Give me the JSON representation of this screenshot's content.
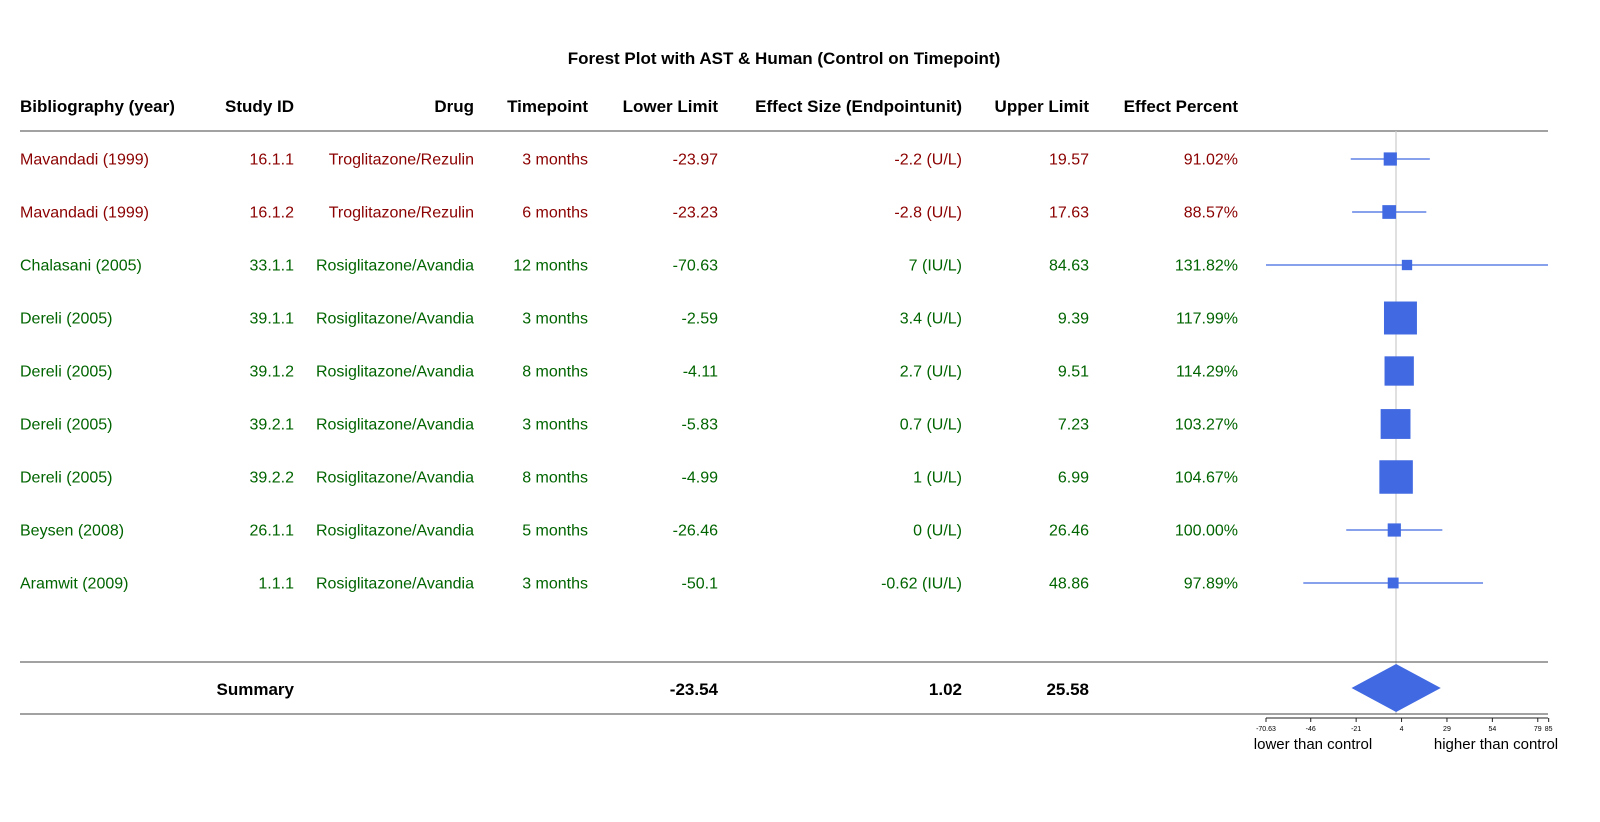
{
  "chart_data": {
    "type": "forest",
    "title": "Forest Plot with AST & Human (Control on Timepoint)",
    "columns": [
      "Bibliography (year)",
      "Study ID",
      "Drug",
      "Timepoint",
      "Lower Limit",
      "Effect Size (Endpointunit)",
      "Upper Limit",
      "Effect Percent"
    ],
    "rows": [
      {
        "bib": "Mavandadi (1999)",
        "study_id": "16.1.1",
        "drug": "Troglitazone/Rezulin",
        "timepoint": "3 months",
        "lower": -23.97,
        "effect": -2.2,
        "effect_label": "-2.2 (U/L)",
        "upper": 19.57,
        "percent": "91.02%",
        "weight": 1,
        "color": "#8b0000"
      },
      {
        "bib": "Mavandadi (1999)",
        "study_id": "16.1.2",
        "drug": "Troglitazone/Rezulin",
        "timepoint": "6 months",
        "lower": -23.23,
        "effect": -2.8,
        "effect_label": "-2.8 (U/L)",
        "upper": 17.63,
        "percent": "88.57%",
        "weight": 1.1,
        "color": "#8b0000"
      },
      {
        "bib": "Chalasani (2005)",
        "study_id": "33.1.1",
        "drug": "Rosiglitazone/Avandia",
        "timepoint": "12 months",
        "lower": -70.63,
        "effect": 7,
        "effect_label": "7 (IU/L)",
        "upper": 84.63,
        "percent": "131.82%",
        "weight": 0.45,
        "color": "#006400"
      },
      {
        "bib": "Dereli (2005)",
        "study_id": "39.1.1",
        "drug": "Rosiglitazone/Avandia",
        "timepoint": "3 months",
        "lower": -2.59,
        "effect": 3.4,
        "effect_label": "3.4 (U/L)",
        "upper": 9.39,
        "percent": "117.99%",
        "weight": 4.8,
        "color": "#006400"
      },
      {
        "bib": "Dereli (2005)",
        "study_id": "39.1.2",
        "drug": "Rosiglitazone/Avandia",
        "timepoint": "8 months",
        "lower": -4.11,
        "effect": 2.7,
        "effect_label": "2.7 (U/L)",
        "upper": 9.51,
        "percent": "114.29%",
        "weight": 4.1,
        "color": "#006400"
      },
      {
        "bib": "Dereli (2005)",
        "study_id": "39.2.1",
        "drug": "Rosiglitazone/Avandia",
        "timepoint": "3 months",
        "lower": -5.83,
        "effect": 0.7,
        "effect_label": "0.7 (U/L)",
        "upper": 7.23,
        "percent": "103.27%",
        "weight": 4.2,
        "color": "#006400"
      },
      {
        "bib": "Dereli (2005)",
        "study_id": "39.2.2",
        "drug": "Rosiglitazone/Avandia",
        "timepoint": "8 months",
        "lower": -4.99,
        "effect": 1,
        "effect_label": "1 (U/L)",
        "upper": 6.99,
        "percent": "104.67%",
        "weight": 4.9,
        "color": "#006400"
      },
      {
        "bib": "Beysen (2008)",
        "study_id": "26.1.1",
        "drug": "Rosiglitazone/Avandia",
        "timepoint": "5 months",
        "lower": -26.46,
        "effect": 0,
        "effect_label": "0 (U/L)",
        "upper": 26.46,
        "percent": "100.00%",
        "weight": 1,
        "color": "#006400"
      },
      {
        "bib": "Aramwit (2009)",
        "study_id": "1.1.1",
        "drug": "Rosiglitazone/Avandia",
        "timepoint": "3 months",
        "lower": -50.1,
        "effect": -0.62,
        "effect_label": "-0.62 (IU/L)",
        "upper": 48.86,
        "percent": "97.89%",
        "weight": 0.55,
        "color": "#006400"
      }
    ],
    "summary": {
      "label": "Summary",
      "lower": -23.54,
      "effect": 1.02,
      "upper": 25.58,
      "lower_text": "-23.54",
      "effect_text": "1.02",
      "upper_text": "25.58"
    },
    "x_axis": {
      "range": [
        -70.63,
        84.63
      ],
      "ticks": [
        -70.63,
        -46,
        -21,
        4,
        29,
        54,
        79,
        85
      ],
      "tick_labels": [
        "-70.63",
        "-46",
        "-21",
        "4",
        "29",
        "54",
        "79",
        "85"
      ],
      "left_label": "lower than control",
      "right_label": "higher than control"
    },
    "colors": {
      "marker": "#4169e1",
      "reference_line": "#cccccc",
      "rule": "#444444",
      "text": "#000000"
    }
  }
}
